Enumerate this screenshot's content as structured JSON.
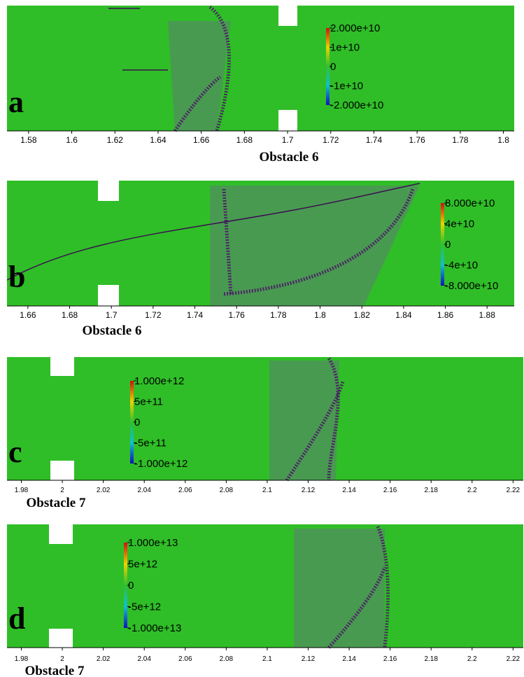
{
  "panels": [
    {
      "letter": "a",
      "caption": "Obstacle 6",
      "xlim": [
        1.57,
        1.805
      ],
      "xticks": [
        1.58,
        1.6,
        1.62,
        1.64,
        1.66,
        1.68,
        1.7,
        1.72,
        1.74,
        1.76,
        1.78,
        1.8
      ],
      "colorbar": {
        "range": [
          -20000000000,
          20000000000
        ],
        "ticks": [
          {
            "value": 20000000000,
            "label": "2.000e+10"
          },
          {
            "value": 10000000000,
            "label": "1e+10"
          },
          0,
          {
            "value": -10000000000,
            "label": "-1e+10"
          },
          {
            "value": -20000000000,
            "label": "-2.000e+10"
          }
        ]
      }
    },
    {
      "letter": "b",
      "caption": "Obstacle 6",
      "xlim": [
        1.65,
        1.893
      ],
      "xticks": [
        1.66,
        1.68,
        1.7,
        1.72,
        1.74,
        1.76,
        1.78,
        1.8,
        1.82,
        1.84,
        1.86,
        1.88
      ],
      "colorbar": {
        "range": [
          -80000000000,
          80000000000
        ],
        "ticks": [
          {
            "value": 80000000000,
            "label": "8.000e+10"
          },
          {
            "value": 40000000000,
            "label": "4e+10"
          },
          0,
          {
            "value": -40000000000,
            "label": "-4e+10"
          },
          {
            "value": -80000000000,
            "label": "-8.000e+10"
          }
        ]
      }
    },
    {
      "letter": "c",
      "caption": "Obstacle 7",
      "xlim": [
        1.973,
        2.225
      ],
      "xticks": [
        1.98,
        2,
        2.02,
        2.04,
        2.06,
        2.08,
        2.1,
        2.12,
        2.14,
        2.16,
        2.18,
        2.2,
        2.22
      ],
      "colorbar": {
        "range": [
          -1000000000000,
          1000000000000
        ],
        "ticks": [
          {
            "value": 1000000000000,
            "label": "1.000e+12"
          },
          {
            "value": 500000000000,
            "label": "5e+11"
          },
          0,
          {
            "value": -500000000000,
            "label": "-5e+11"
          },
          {
            "value": -1000000000000,
            "label": "-1.000e+12"
          }
        ]
      }
    },
    {
      "letter": "d",
      "caption": "Obstacle 7",
      "xlim": [
        1.973,
        2.225
      ],
      "xticks": [
        1.98,
        2,
        2.02,
        2.04,
        2.06,
        2.08,
        2.1,
        2.12,
        2.14,
        2.16,
        2.18,
        2.2,
        2.22
      ],
      "colorbar": {
        "range": [
          -10000000000000,
          10000000000000
        ],
        "ticks": [
          {
            "value": 10000000000000,
            "label": "1.000e+13"
          },
          {
            "value": 5000000000000,
            "label": "5e+12"
          },
          0,
          {
            "value": -5000000000000,
            "label": "-5e+12"
          },
          {
            "value": -10000000000000,
            "label": "-1.000e+13"
          }
        ]
      }
    }
  ]
}
